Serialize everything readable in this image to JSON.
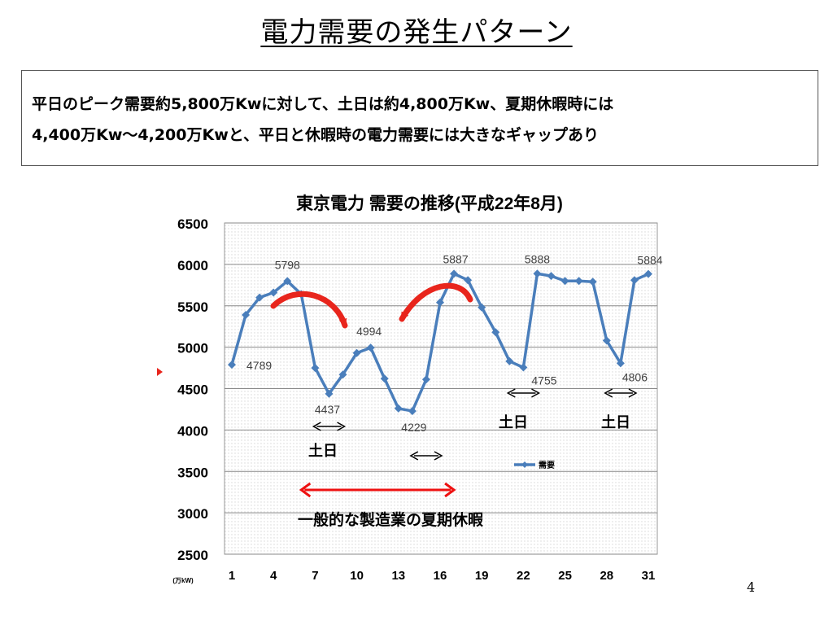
{
  "slide": {
    "title": "電力需要の発生パターン",
    "summary_lines": [
      "平日のピーク需要約5,800万Kwに対して、土日は約4,800万Kw、夏期休暇時には",
      "4,400万Kw～4,200万Kwと、平日と休暇時の電力需要には大きなギャップあり"
    ],
    "page_number": "4"
  },
  "chart_data": {
    "type": "line",
    "title": "東京電力 需要の推移(平成22年8月)",
    "unit_label": "(万kW)",
    "x": [
      1,
      2,
      3,
      4,
      5,
      6,
      7,
      8,
      9,
      10,
      11,
      12,
      13,
      14,
      15,
      16,
      17,
      18,
      19,
      20,
      21,
      22,
      23,
      24,
      25,
      26,
      27,
      28,
      29,
      30,
      31
    ],
    "series": [
      {
        "name": "需要",
        "color": "#4a7ebb",
        "values": [
          4789,
          5390,
          5600,
          5660,
          5798,
          5640,
          4750,
          4437,
          4670,
          4930,
          4994,
          4620,
          4260,
          4229,
          4610,
          5540,
          5887,
          5810,
          5480,
          5180,
          4830,
          4755,
          5888,
          5860,
          5800,
          5800,
          5790,
          5080,
          4806,
          5810,
          5884
        ]
      }
    ],
    "labeled_points": [
      {
        "day": 1,
        "value": "4789"
      },
      {
        "day": 5,
        "value": "5798"
      },
      {
        "day": 8,
        "value": "4437"
      },
      {
        "day": 11,
        "value": "4994"
      },
      {
        "day": 14,
        "value": "4229"
      },
      {
        "day": 17,
        "value": "5887"
      },
      {
        "day": 22,
        "value": "4755"
      },
      {
        "day": 23,
        "value": "5888"
      },
      {
        "day": 29,
        "value": "4806"
      },
      {
        "day": 31,
        "value": "5884"
      }
    ],
    "xticks": [
      1,
      4,
      7,
      10,
      13,
      16,
      19,
      22,
      25,
      28,
      31
    ],
    "yticks": [
      2500,
      3000,
      3500,
      4000,
      4500,
      5000,
      5500,
      6000,
      6500
    ],
    "ylim": [
      2500,
      6500
    ],
    "grid": true,
    "legend_position": "center-right",
    "annotations": {
      "weekend_label": "土日",
      "weekend_ranges": [
        [
          7,
          9
        ],
        [
          14,
          16
        ],
        [
          21,
          23
        ],
        [
          28,
          30
        ]
      ],
      "weekend_labels_for_ranges": [
        [
          7,
          9
        ],
        [
          21,
          23
        ],
        [
          28,
          30
        ]
      ],
      "summer_holiday_label": "一般的な製造業の夏期休暇",
      "summer_holiday_range": [
        6,
        17
      ],
      "summer_holiday_color": "#ee1111",
      "curved_arrow_color": "#e8251c"
    }
  }
}
